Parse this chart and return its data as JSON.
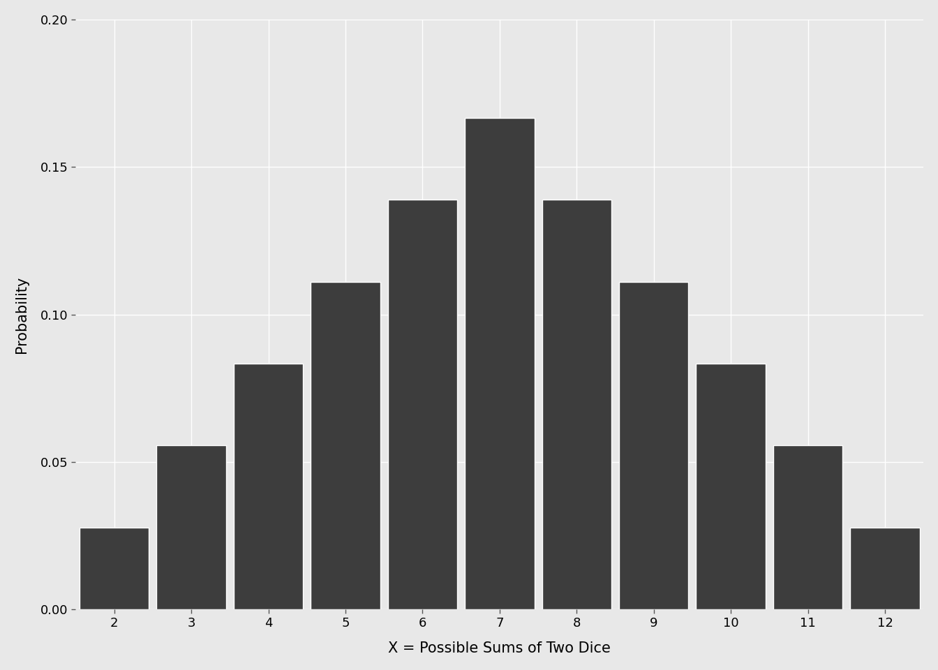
{
  "categories": [
    2,
    3,
    4,
    5,
    6,
    7,
    8,
    9,
    10,
    11,
    12
  ],
  "probabilities": [
    0.02778,
    0.05556,
    0.08333,
    0.11111,
    0.13889,
    0.16667,
    0.13889,
    0.11111,
    0.08333,
    0.05556,
    0.02778
  ],
  "bar_color": "#3d3d3d",
  "background_color": "#e8e8e8",
  "panel_background": "#e8e8e8",
  "grid_color": "#ffffff",
  "xlabel": "X = Possible Sums of Two Dice",
  "ylabel": "Probability",
  "ylim": [
    0,
    0.2
  ],
  "yticks": [
    0.0,
    0.05,
    0.1,
    0.15,
    0.2
  ],
  "xlim": [
    1.5,
    12.5
  ],
  "bar_width": 0.9,
  "xlabel_fontsize": 15,
  "ylabel_fontsize": 15,
  "tick_fontsize": 13
}
